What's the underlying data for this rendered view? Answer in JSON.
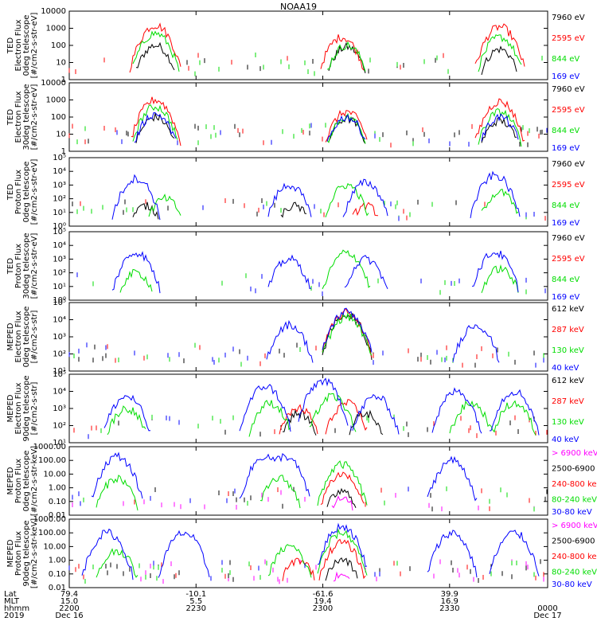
{
  "title": "NOAA19",
  "chart_data": [
    {
      "type": "line",
      "ylabel": [
        "TED",
        "Electron Flux",
        "0deg telescope",
        "[#/cm2-s-str-eV]"
      ],
      "ylim": [
        1,
        10000
      ],
      "log": true,
      "yticks": [
        {
          "value": 1,
          "label": "1"
        },
        {
          "value": 10,
          "label": "10"
        },
        {
          "value": 100,
          "label": "100"
        },
        {
          "value": 1000,
          "label": "1000"
        },
        {
          "value": 10000,
          "label": "10000"
        }
      ],
      "series": [
        {
          "name": "7960 eV",
          "color": "#000000",
          "peaks": [
            [
              0.18,
              100
            ],
            [
              0.58,
              80
            ],
            [
              0.9,
              60
            ]
          ]
        },
        {
          "name": "2595 eV",
          "color": "#ff0000",
          "peaks": [
            [
              0.18,
              1500
            ],
            [
              0.57,
              300
            ],
            [
              0.9,
              1200
            ]
          ]
        },
        {
          "name": "844 eV",
          "color": "#00dd00",
          "peaks": [
            [
              0.18,
              500
            ],
            [
              0.58,
              100
            ],
            [
              0.9,
              300
            ]
          ]
        },
        {
          "name": "169 eV",
          "color": "#0000ff",
          "peaks": []
        }
      ]
    },
    {
      "type": "line",
      "ylabel": [
        "TED",
        "Electron Flux",
        "30deg telescope",
        "[#/cm2-s-str-eV]"
      ],
      "ylim": [
        1,
        10000
      ],
      "log": true,
      "yticks": [
        {
          "value": 1,
          "label": "1"
        },
        {
          "value": 10,
          "label": "10"
        },
        {
          "value": 100,
          "label": "100"
        },
        {
          "value": 1000,
          "label": "1000"
        },
        {
          "value": 10000,
          "label": "10000"
        }
      ],
      "series": [
        {
          "name": "7960 eV",
          "color": "#000000",
          "peaks": [
            [
              0.18,
              100
            ],
            [
              0.58,
              80
            ],
            [
              0.9,
              60
            ]
          ]
        },
        {
          "name": "2595 eV",
          "color": "#ff0000",
          "peaks": [
            [
              0.18,
              1000
            ],
            [
              0.58,
              200
            ],
            [
              0.9,
              800
            ]
          ]
        },
        {
          "name": "844 eV",
          "color": "#00dd00",
          "peaks": [
            [
              0.18,
              400
            ],
            [
              0.58,
              100
            ],
            [
              0.9,
              200
            ]
          ]
        },
        {
          "name": "169 eV",
          "color": "#0000ff",
          "peaks": [
            [
              0.18,
              150
            ],
            [
              0.58,
              100
            ],
            [
              0.9,
              100
            ]
          ]
        }
      ]
    },
    {
      "type": "line",
      "ylabel": [
        "TED",
        "Proton Flux",
        "0deg telescope",
        "[#/cm2-s-str-eV]"
      ],
      "ylim": [
        1,
        100000
      ],
      "log": true,
      "yticks": [
        {
          "value": 1,
          "label": "10⁰"
        },
        {
          "value": 10,
          "label": "10¹"
        },
        {
          "value": 100,
          "label": "10²"
        },
        {
          "value": 1000,
          "label": "10³"
        },
        {
          "value": 10000,
          "label": "10⁴"
        },
        {
          "value": 100000,
          "label": "10⁵"
        }
      ],
      "series": [
        {
          "name": "7960 eV",
          "color": "#000000",
          "peaks": [
            [
              0.16,
              30
            ],
            [
              0.47,
              30
            ]
          ]
        },
        {
          "name": "2595 eV",
          "color": "#ff0000",
          "peaks": [
            [
              0.62,
              30
            ]
          ]
        },
        {
          "name": "844 eV",
          "color": "#00dd00",
          "peaks": [
            [
              0.2,
              100
            ],
            [
              0.58,
              1000
            ],
            [
              0.9,
              300
            ]
          ]
        },
        {
          "name": "169 eV",
          "color": "#0000ff",
          "peaks": [
            [
              0.14,
              3000
            ],
            [
              0.46,
              1000
            ],
            [
              0.62,
              1500
            ],
            [
              0.89,
              5000
            ]
          ]
        }
      ]
    },
    {
      "type": "line",
      "ylabel": [
        "TED",
        "Proton Flux",
        "30deg telescope",
        "[#/cm2-s-str-eV]"
      ],
      "ylim": [
        1,
        100000
      ],
      "log": true,
      "yticks": [
        {
          "value": 1,
          "label": "10⁰"
        },
        {
          "value": 10,
          "label": "10¹"
        },
        {
          "value": 100,
          "label": "10²"
        },
        {
          "value": 1000,
          "label": "10³"
        },
        {
          "value": 10000,
          "label": "10⁴"
        },
        {
          "value": 100000,
          "label": "10⁵"
        }
      ],
      "series": [
        {
          "name": "7960 eV",
          "color": "#000000",
          "peaks": []
        },
        {
          "name": "2595 eV",
          "color": "#ff0000",
          "peaks": []
        },
        {
          "name": "844 eV",
          "color": "#00dd00",
          "peaks": [
            [
              0.14,
              100
            ],
            [
              0.58,
              3000
            ],
            [
              0.9,
              200
            ]
          ]
        },
        {
          "name": "169 eV",
          "color": "#0000ff",
          "peaks": [
            [
              0.14,
              3000
            ],
            [
              0.46,
              1000
            ],
            [
              0.62,
              1000
            ],
            [
              0.89,
              3000
            ]
          ]
        }
      ]
    },
    {
      "type": "line",
      "ylabel": [
        "MEPED",
        "Electron Flux",
        "0deg telescope",
        "[#/cm2-s-str]"
      ],
      "ylim": [
        10,
        100000
      ],
      "log": true,
      "yticks": [
        {
          "value": 10,
          "label": "10¹"
        },
        {
          "value": 100,
          "label": "10²"
        },
        {
          "value": 1000,
          "label": "10³"
        },
        {
          "value": 10000,
          "label": "10⁴"
        },
        {
          "value": 100000,
          "label": "10⁵"
        }
      ],
      "series": [
        {
          "name": "612 keV",
          "color": "#000000",
          "peaks": [
            [
              0.58,
              20000
            ]
          ]
        },
        {
          "name": "287 keV",
          "color": "#ff0000",
          "peaks": [
            [
              0.58,
              25000
            ]
          ]
        },
        {
          "name": "130 keV",
          "color": "#00dd00",
          "peaks": [
            [
              0.58,
              15000
            ]
          ]
        },
        {
          "name": "40 keV",
          "color": "#0000ff",
          "peaks": [
            [
              0.58,
              30000
            ],
            [
              0.46,
              5000
            ],
            [
              0.85,
              5000
            ]
          ]
        }
      ]
    },
    {
      "type": "line",
      "ylabel": [
        "MEPED",
        "Electron Flux",
        "90deg telescope",
        "[#/cm2-s-str]"
      ],
      "ylim": [
        10,
        100000
      ],
      "log": true,
      "yticks": [
        {
          "value": 10,
          "label": "10¹"
        },
        {
          "value": 100,
          "label": "10²"
        },
        {
          "value": 1000,
          "label": "10³"
        },
        {
          "value": 10000,
          "label": "10⁴"
        },
        {
          "value": 100000,
          "label": "10⁵"
        }
      ],
      "series": [
        {
          "name": "612 keV",
          "color": "#000000",
          "peaks": [
            [
              0.48,
              500
            ],
            [
              0.62,
              500
            ]
          ]
        },
        {
          "name": "287 keV",
          "color": "#ff0000",
          "peaks": [
            [
              0.48,
              1000
            ],
            [
              0.58,
              2000
            ]
          ]
        },
        {
          "name": "130 keV",
          "color": "#00dd00",
          "peaks": [
            [
              0.12,
              1000
            ],
            [
              0.42,
              2000
            ],
            [
              0.55,
              5000
            ],
            [
              0.84,
              2000
            ],
            [
              0.93,
              2000
            ]
          ]
        },
        {
          "name": "40 keV",
          "color": "#0000ff",
          "peaks": [
            [
              0.12,
              5000
            ],
            [
              0.41,
              20000
            ],
            [
              0.53,
              40000
            ],
            [
              0.64,
              5000
            ],
            [
              0.81,
              10000
            ],
            [
              0.93,
              10000
            ]
          ]
        }
      ]
    },
    {
      "type": "line",
      "ylabel": [
        "MEPED",
        "Proton Flux",
        "0deg telescope",
        "[#/cm2-s-str-keV]"
      ],
      "ylim": [
        0.01,
        1000
      ],
      "log": true,
      "yticks": [
        {
          "value": 0.01,
          "label": "0.01"
        },
        {
          "value": 0.1,
          "label": "0.10"
        },
        {
          "value": 1,
          "label": "1.00"
        },
        {
          "value": 10,
          "label": "10.00"
        },
        {
          "value": 100,
          "label": "100.00"
        },
        {
          "value": 1000,
          "label": "1000.00"
        }
      ],
      "series": [
        {
          "name": "> 6900 keV",
          "color": "#ff00ff",
          "peaks": [
            [
              0.57,
              0.15
            ]
          ]
        },
        {
          "name": "2500-6900",
          "color": "#000000",
          "peaks": [
            [
              0.57,
              0.5
            ]
          ]
        },
        {
          "name": "240-800 ke",
          "color": "#ff0000",
          "peaks": [
            [
              0.57,
              10
            ]
          ]
        },
        {
          "name": "80-240 keV",
          "color": "#00dd00",
          "peaks": [
            [
              0.57,
              50
            ],
            [
              0.1,
              5
            ],
            [
              0.44,
              5
            ]
          ]
        },
        {
          "name": "30-80 keV",
          "color": "#0000ff",
          "peaks": [
            [
              0.1,
              200
            ],
            [
              0.41,
              200
            ],
            [
              0.45,
              200
            ],
            [
              0.8,
              100
            ]
          ]
        }
      ]
    },
    {
      "type": "line",
      "ylabel": [
        "MEPED",
        "Proton Flux",
        "90deg telescope",
        "[#/cm2-s-str-keV]"
      ],
      "ylim": [
        0.01,
        1000
      ],
      "log": true,
      "yticks": [
        {
          "value": 0.01,
          "label": "0.01"
        },
        {
          "value": 0.1,
          "label": "0.10"
        },
        {
          "value": 1,
          "label": "1.00"
        },
        {
          "value": 10,
          "label": "10.00"
        },
        {
          "value": 100,
          "label": "100.00"
        },
        {
          "value": 1000,
          "label": "1000.00"
        }
      ],
      "series": [
        {
          "name": "> 6900 keV",
          "color": "#ff00ff",
          "peaks": [
            [
              0.57,
              0.1
            ]
          ]
        },
        {
          "name": "2500-6900",
          "color": "#000000",
          "peaks": [
            [
              0.57,
              1
            ]
          ]
        },
        {
          "name": "240-800 ke",
          "color": "#ff0000",
          "peaks": [
            [
              0.57,
              20
            ],
            [
              0.48,
              1
            ]
          ]
        },
        {
          "name": "80-240 keV",
          "color": "#00dd00",
          "peaks": [
            [
              0.57,
              100
            ],
            [
              0.1,
              5
            ],
            [
              0.46,
              10
            ]
          ]
        },
        {
          "name": "30-80 keV",
          "color": "#0000ff",
          "peaks": [
            [
              0.08,
              100
            ],
            [
              0.24,
              100
            ],
            [
              0.57,
              300
            ],
            [
              0.8,
              100
            ],
            [
              0.93,
              100
            ]
          ]
        }
      ]
    }
  ],
  "x_axis": {
    "row_labels": [
      "Lat",
      "MLT",
      "hhmm",
      "2019"
    ],
    "ticks": [
      {
        "pos": 0.0,
        "Lat": "79.4",
        "MLT": "15.0",
        "hhmm": "2200",
        "date": "Dec 16"
      },
      {
        "pos": 0.265,
        "Lat": "-10.1",
        "MLT": "5.5",
        "hhmm": "2230",
        "date": ""
      },
      {
        "pos": 0.53,
        "Lat": "-61.6",
        "MLT": "19.4",
        "hhmm": "2300",
        "date": ""
      },
      {
        "pos": 0.795,
        "Lat": "39.9",
        "MLT": "16.9",
        "hhmm": "2330",
        "date": ""
      },
      {
        "pos": 1.0,
        "Lat": "",
        "MLT": "",
        "hhmm": "0000",
        "date": "Dec 17"
      }
    ]
  }
}
